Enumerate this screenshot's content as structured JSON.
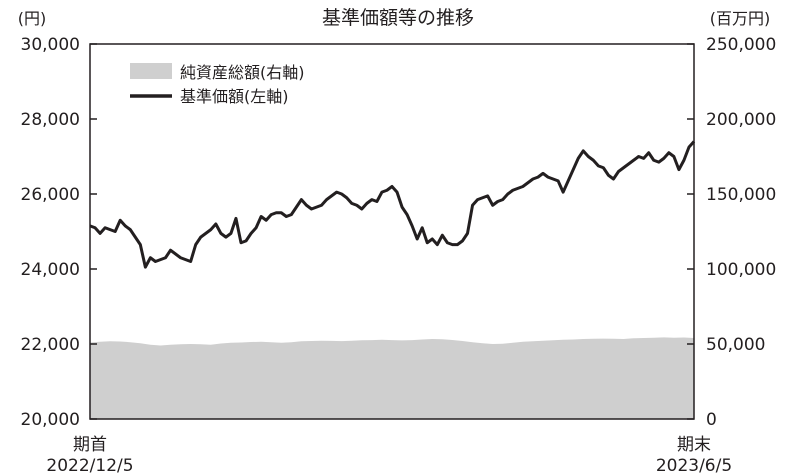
{
  "chart_data": {
    "type": "line",
    "title": "基準価額等の推移",
    "left_axis": {
      "unit": "(円)",
      "range": [
        20000,
        30000
      ],
      "ticks": [
        "20,000",
        "22,000",
        "24,000",
        "26,000",
        "28,000",
        "30,000"
      ],
      "tick_values": [
        20000,
        22000,
        24000,
        26000,
        28000,
        30000
      ]
    },
    "right_axis": {
      "unit": "(百万円)",
      "range": [
        0,
        250000
      ],
      "ticks": [
        "0",
        "50,000",
        "100,000",
        "150,000",
        "200,000",
        "250,000"
      ],
      "tick_values": [
        0,
        50000,
        100000,
        150000,
        200000,
        250000
      ]
    },
    "x_labels": {
      "start": {
        "line1": "期首",
        "line2": "2022/12/5"
      },
      "end": {
        "line1": "期末",
        "line2": "2023/6/5"
      }
    },
    "legend": [
      {
        "label": "純資産総額(右軸)",
        "kind": "area",
        "color": "#cfcfcf"
      },
      {
        "label": "基準価額(左軸)",
        "kind": "line",
        "color": "#231f20"
      }
    ],
    "series": [
      {
        "name": "基準価額(左軸)",
        "axis": "left",
        "values": [
          25150,
          25100,
          24950,
          25100,
          25050,
          25000,
          25300,
          25150,
          25050,
          24850,
          24650,
          24050,
          24300,
          24200,
          24250,
          24300,
          24500,
          24400,
          24300,
          24250,
          24200,
          24650,
          24850,
          24950,
          25050,
          25200,
          24950,
          24850,
          24950,
          25350,
          24700,
          24750,
          24950,
          25100,
          25400,
          25300,
          25450,
          25500,
          25500,
          25400,
          25450,
          25650,
          25850,
          25700,
          25600,
          25650,
          25700,
          25850,
          25950,
          26050,
          26000,
          25900,
          25750,
          25700,
          25600,
          25750,
          25850,
          25800,
          26050,
          26100,
          26200,
          26050,
          25650,
          25450,
          25150,
          24800,
          25100,
          24700,
          24800,
          24650,
          24900,
          24700,
          24650,
          24650,
          24750,
          24950,
          25700,
          25850,
          25900,
          25950,
          25700,
          25800,
          25850,
          26000,
          26100,
          26150,
          26200,
          26300,
          26400,
          26450,
          26550,
          26450,
          26400,
          26350,
          26050,
          26350,
          26650,
          26950,
          27150,
          27000,
          26900,
          26750,
          26700,
          26500,
          26400,
          26600,
          26700,
          26800,
          26900,
          27000,
          26950,
          27100,
          26900,
          26850,
          26950,
          27100,
          27000,
          26650,
          26900,
          27250,
          27400
        ]
      },
      {
        "name": "純資産総額(右軸)",
        "axis": "right",
        "values": [
          51000,
          51500,
          51800,
          51700,
          51200,
          50500,
          49500,
          49000,
          49500,
          49800,
          50000,
          49800,
          49500,
          50300,
          50800,
          51000,
          51300,
          51500,
          51200,
          50800,
          51200,
          51800,
          52000,
          52200,
          52100,
          51900,
          52200,
          52500,
          52600,
          52800,
          52600,
          52400,
          52600,
          53000,
          53300,
          53200,
          52700,
          52000,
          51200,
          50500,
          50000,
          50200,
          50800,
          51500,
          51800,
          52200,
          52500,
          52800,
          53000,
          53300,
          53500,
          53600,
          53500,
          53300,
          53800,
          54000,
          54200,
          54400,
          54200,
          54300,
          54000
        ]
      }
    ],
    "colors": {
      "line": "#231f20",
      "area": "#cfcfcf",
      "axis": "#231f20"
    }
  }
}
